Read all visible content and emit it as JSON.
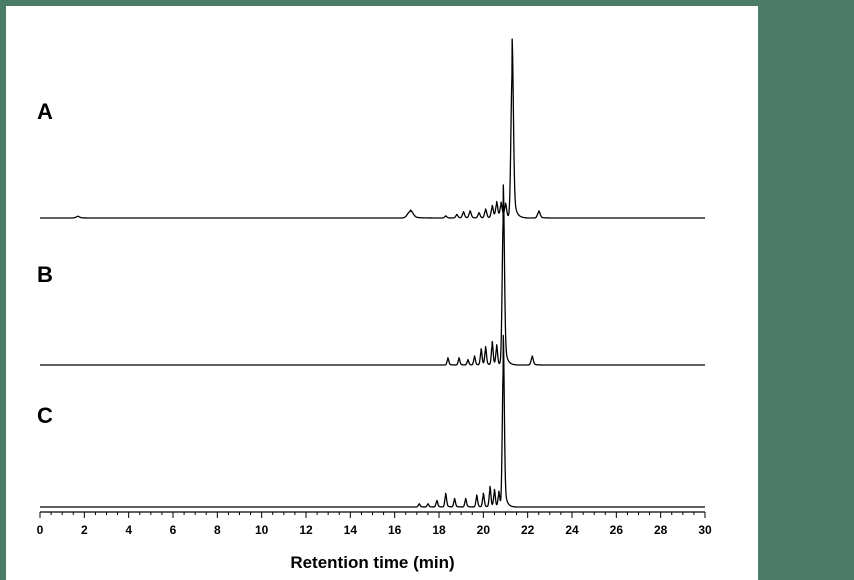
{
  "chart_data": {
    "type": "line",
    "title": "",
    "xlabel": "Retention time (min)",
    "ylabel": "",
    "xlim": [
      0,
      30
    ],
    "xticks": [
      0,
      2,
      4,
      6,
      8,
      10,
      12,
      14,
      16,
      18,
      20,
      22,
      24,
      26,
      28,
      30
    ],
    "x_minor_step": 0.5,
    "grid": false,
    "series": [
      {
        "name": "A",
        "peaks": [
          {
            "rt": 1.7,
            "h": 0.01,
            "w": 0.08
          },
          {
            "rt": 16.7,
            "h": 0.045,
            "w": 0.12
          },
          {
            "rt": 18.3,
            "h": 0.012,
            "w": 0.05
          },
          {
            "rt": 18.8,
            "h": 0.02,
            "w": 0.05
          },
          {
            "rt": 19.1,
            "h": 0.035,
            "w": 0.05
          },
          {
            "rt": 19.4,
            "h": 0.04,
            "w": 0.05
          },
          {
            "rt": 19.8,
            "h": 0.03,
            "w": 0.05
          },
          {
            "rt": 20.1,
            "h": 0.05,
            "w": 0.05
          },
          {
            "rt": 20.4,
            "h": 0.07,
            "w": 0.05
          },
          {
            "rt": 20.6,
            "h": 0.09,
            "w": 0.05
          },
          {
            "rt": 20.8,
            "h": 0.085,
            "w": 0.05
          },
          {
            "rt": 21.0,
            "h": 0.08,
            "w": 0.05
          },
          {
            "rt": 21.3,
            "h": 1.0,
            "w": 0.055
          },
          {
            "rt": 22.5,
            "h": 0.04,
            "w": 0.06
          }
        ]
      },
      {
        "name": "B",
        "peaks": [
          {
            "rt": 18.4,
            "h": 0.04,
            "w": 0.04
          },
          {
            "rt": 18.9,
            "h": 0.04,
            "w": 0.04
          },
          {
            "rt": 19.3,
            "h": 0.03,
            "w": 0.04
          },
          {
            "rt": 19.6,
            "h": 0.05,
            "w": 0.04
          },
          {
            "rt": 19.9,
            "h": 0.09,
            "w": 0.04
          },
          {
            "rt": 20.1,
            "h": 0.1,
            "w": 0.04
          },
          {
            "rt": 20.4,
            "h": 0.13,
            "w": 0.04
          },
          {
            "rt": 20.6,
            "h": 0.11,
            "w": 0.04
          },
          {
            "rt": 20.9,
            "h": 1.0,
            "w": 0.05
          },
          {
            "rt": 22.2,
            "h": 0.05,
            "w": 0.05
          }
        ]
      },
      {
        "name": "C",
        "peaks": [
          {
            "rt": 17.1,
            "h": 0.02,
            "w": 0.04
          },
          {
            "rt": 17.5,
            "h": 0.02,
            "w": 0.04
          },
          {
            "rt": 17.9,
            "h": 0.04,
            "w": 0.04
          },
          {
            "rt": 18.3,
            "h": 0.08,
            "w": 0.04
          },
          {
            "rt": 18.7,
            "h": 0.05,
            "w": 0.04
          },
          {
            "rt": 19.2,
            "h": 0.05,
            "w": 0.04
          },
          {
            "rt": 19.7,
            "h": 0.07,
            "w": 0.04
          },
          {
            "rt": 20.0,
            "h": 0.08,
            "w": 0.04
          },
          {
            "rt": 20.3,
            "h": 0.12,
            "w": 0.04
          },
          {
            "rt": 20.5,
            "h": 0.1,
            "w": 0.04
          },
          {
            "rt": 20.7,
            "h": 0.09,
            "w": 0.04
          },
          {
            "rt": 20.9,
            "h": 1.0,
            "w": 0.045
          }
        ]
      }
    ]
  }
}
